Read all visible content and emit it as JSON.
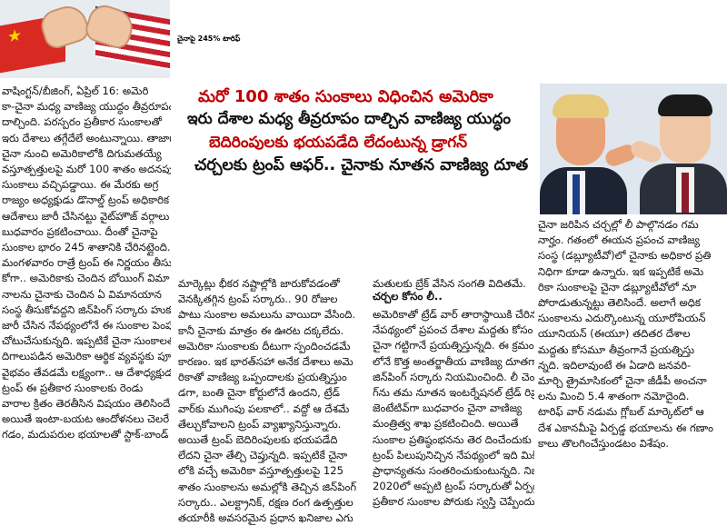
{
  "headline": "చైనాపై 245% టారిఫ్",
  "subheads": {
    "line1": "మరో 100 శాతం సుంకాలు విధించిన అమెరికా",
    "line2": "ఇరు దేశాల మధ్య తీవ్రరూపం దాల్చిన వాణిజ్య యుద్ధం",
    "line3": "బెదిరింపులకు భయపడేది లేదంటున్న డ్రాగన్",
    "line4": "చర్చలకు ట్రంప్ ఆఫర్.. చైనాకు నూతన వాణిజ్య దూత"
  },
  "columns": {
    "col1": "వాషింగ్టన్/బీజింగ్, ఏప్రిల్ 16: అమెరి\nకా-చైనా మధ్య వాణిజ్య యుద్ధం తీవ్రరూపం\nదాల్చింది. పరస్పరం ప్రతీకార సుంకాలతో\nఇరు దేశాలు తగ్గేదేలే అంటున్నాయి. తాజాగా\nచైనా నుంచి అమెరికాలోకి దిగుమతయ్యే\nవస్తూత్పత్తులపై మరో 100 శాతం అదనపు\nసుంకాలు వచ్చిపడ్డాయి. ఈ మేరకు అగ్ర\nరాజ్యం అధ్యక్షుడు డొనాల్డ్ ట్రంప్ అధికారిక\nఆదేశాలు జారీ చేసినట్టు వైట్‌హౌజ్ వర్గాలు\nబుధవారం ప్రకటించాయి. దీంతో చైనాపై\nసుంకాల భారం 245 శాతానికి చేరినట్లైంది.\nమంగళవారం రాత్రే ట్రంప్ ఈ నిర్ణయం తీసు\nకోగా.. అమెరికాకు చెందిన బోయింగ్ విమా\nనాలను చైనాకు చెందిన ఏ విమానయాన\nసంస్థ తీసుకోవద్దని జిన్‌పింగ్ సర్కారు హుకుం\nజారీ చేసిన నేపథ్యంలోనే ఈ సుంకాల పెంపు\nచోటుచేసుకున్నది. ఇప్పటికే చైనా సుంకాలతో\nదిగాలుపడిన అమెరికా ఆర్థిక వ్యవస్థకు పూర్వ\nవైభవం తేవడమే లక్ష్యంగా.. ఆ దేశాధ్యక్షుడు\nట్రంప్ ఈ ప్రతీకార సుంకాలకు రెండు\nవారాల క్రితం తెరతీసిన విషయం తెలిసిందే.\nఅయితే ఇంటా-బయట ఆందోళనలు చెలరే\nగడం, మదుపరుల భయాలతో స్టాక్-బాండ్",
    "col2": "మార్కెట్లు భీకర నష్టాల్లోకి జారుకోవడంతో\nవెనక్కితగ్గిన ట్రంప్ సర్కారు.. 90 రోజుల\nపాటు సుంకాల అమలును వాయిదా వేసింది.\nకానీ చైనాకు మాత్రం ఈ ఊరట దక్కలేదు.\nఅమెరికా సుంకాలకు దీటుగా స్పందించడమే\nకారణం. ఇక భారత్‌సహా అనేక దేశాలు అమె\nరికాతో వాణిజ్య ఒప్పందాలకు ప్రయత్నిస్తుం\nడగా, బంతి చైనా కోర్టులోనే ఉందని, ట్రేడ్\nవార్‌కు ముగింపు పలకాలో.. వద్దో ఆ దేశమే\nతేల్చుకోవాలని ట్రంప్ వ్యాఖ్యానిస్తున్నారు.\nఅయితే ట్రంప్ బెదిరింపులకు భయపడేది\nలేదని చైనా తేల్చి చెప్తున్నది. ఇప్పటికే చైనా\nలోకి వచ్చే అమెరికా వస్తూత్పత్తులపై 125\nశాతం సుంకాలను అమల్లోకి తెచ్చిన జిన్‌పింగ్\nసర్కారు.. ఎలక్ట్రానిక్, రక్షణ రంగ ఉత్పత్తుల\nతయారీకి అవసరమైన ప్రధాన ఖనిజాల ఎగు",
    "col3a": "మతులకు బ్రేక్ వేసిన సంగతి విదితమే.",
    "col3_heading": "చర్చల కోసం లీ..",
    "col3b": "అమెరికాతో ట్రేడ్ వార్ తారాస్థాయికి చేరిన\nనేపథ్యంలో ప్రపంచ దేశాల మద్దతు కోసం\nచైనా గట్టిగానే ప్రయత్నిస్తున్నది. ఈ క్రమం\nలోనే కొత్త అంతర్జాతీయ వాణిజ్య దూతగా\nజిన్‌పింగ్ సర్కారు నియమించింది. లీ చెంగాం\nగ్‌ను తమ నూతన ఇంటర్నేషనల్ ట్రేడ్ రిప్ర\nజెంటేటివ్‌గా బుధవారం చైనా వాణిజ్య\nమంత్రిత్వ శాఖ ప్రకటించింది. అయితే\nసుంకాల ప్రతిష్ఠంభనను తెర దించేందుకు\nట్రంప్ పిలుపునిచ్చిన నేపథ్యంలో ఇది మిక్కిలి\nప్రాధాన్యతను సంతరించుకుంటున్నది. నిజా\n2020లో అప్పటి ట్రంప్ సర్కారుతో ఏర్పడ్డ\nప్రతీకార సుంకాల పోరుకు స్వస్తి చెప్పేందుకు",
    "col4": "చైనా జరిపిన చర్చల్లో లీ పాల్గొనడం గమ\nనార్హం. గతంలో ఈయన ప్రపంచ వాణిజ్య\nసంస్థ (డబ్ల్యూటీవో)లో చైనాకు అధికార ప్రతి\nనిధిగా కూడా ఉన్నారు. ఇక ఇప్పటికే అమె\nరికా సుంకాలపై చైనా డబ్ల్యూటీవోలో నూ\nపోరాడుతున్నట్టు తెలిసిందే. అలాగే అధిక\nసుంకాలను ఎదుర్కొంటున్న యూరోపియన్\nయూనియన్ (ఈయూ) తదితర దేశాల\nమద్దతు కోసమూ తీవ్రంగానే ప్రయత్నిస్తు\nన్నది. ఇదిలావుంటే ఈ ఏడాది జనవరి-\nమార్చి త్రైమాసికంలో చైనా జీడీపీ అంచనా\nలను మించి 5.4 శాతంగా నమోదైంది.\nటారిఫ్ వార్ నడుమ గ్లోబల్ మార్కెట్‌లో ఆ\nదేశ ఎకానమీపై ఏర్పడ్డ భయాలను ఈ గణాం\nకాలు తొలగించేస్తుండటం విశేషం."
  },
  "colors": {
    "headline": "#000000",
    "subhead_red": "#c00000",
    "subhead_black": "#111111",
    "body_text": "#111111"
  }
}
